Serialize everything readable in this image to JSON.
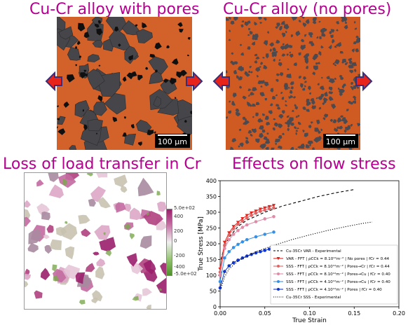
{
  "titles": {
    "pores": "Cu-Cr alloy with pores",
    "no_pores": "Cu-Cr alloy (no pores)",
    "load_transfer": "Loss of load transfer in Cr",
    "flow_stress": "Effects on flow stress"
  },
  "micrographs": {
    "scale_label_left": "100 µm",
    "scale_label_right": "100 µm",
    "colors": {
      "matrix": "#d2622a",
      "cr_phase": "#46464a",
      "pores": "#101010",
      "arrow_fill": "#e8231a",
      "arrow_border": "#3a2e7a"
    }
  },
  "stress_map": {
    "colorbar_ticks": [
      "5.0e+02",
      "400",
      "200",
      "0",
      "-200",
      "-400",
      "-5.0e+02"
    ],
    "colors": {
      "high": "#9b1f6b",
      "mid": "#f0f0f0",
      "low": "#4e8f2a"
    }
  },
  "chart_data": {
    "type": "line",
    "xlabel": "True Strain",
    "ylabel": "True Stress [MPa]",
    "xlim": [
      0,
      0.2
    ],
    "ylim": [
      0,
      400
    ],
    "xticks": [
      "0.00",
      "0.05",
      "0.10",
      "0.15",
      "0.20"
    ],
    "yticks": [
      "0",
      "50",
      "100",
      "150",
      "200",
      "250",
      "300",
      "350",
      "400"
    ],
    "grid": false,
    "legend_position": "lower-right",
    "series": [
      {
        "name": "Cu-35Cr VAR - Experimental",
        "style": "dashed",
        "color": "#000000",
        "x": [
          0.001,
          0.005,
          0.01,
          0.02,
          0.03,
          0.05,
          0.07,
          0.09,
          0.11,
          0.13,
          0.15
        ],
        "y": [
          150,
          195,
          220,
          255,
          275,
          300,
          320,
          335,
          350,
          362,
          372
        ]
      },
      {
        "name": "VAR - FFT | ρCCk = 8.10¹²m⁻² | No pores | fCr = 0.44",
        "style": "marker-line",
        "marker": "triangle-down",
        "color": "#e3231c",
        "x": [
          0,
          0.005,
          0.01,
          0.015,
          0.02,
          0.025,
          0.03,
          0.035,
          0.04,
          0.045,
          0.05,
          0.055,
          0.06
        ],
        "y": [
          120,
          205,
          235,
          255,
          268,
          280,
          290,
          298,
          304,
          310,
          314,
          318,
          322
        ]
      },
      {
        "name": "SSS - FFT | ρCCk = 8.10¹²m⁻² | Pores→Cr | fCr = 0.44",
        "style": "marker-line",
        "marker": "circle",
        "color": "#e06262",
        "x": [
          0,
          0.005,
          0.01,
          0.015,
          0.02,
          0.025,
          0.03,
          0.035,
          0.04,
          0.045,
          0.05,
          0.055,
          0.06
        ],
        "y": [
          110,
          195,
          228,
          248,
          262,
          272,
          282,
          290,
          297,
          303,
          307,
          311,
          314
        ]
      },
      {
        "name": "SSS - FFT | ρCCk = 8.10¹²m⁻² | Pores→Cu | fCr = 0.40",
        "style": "marker-line",
        "marker": "circle",
        "color": "#e08aa6",
        "x": [
          0,
          0.005,
          0.01,
          0.015,
          0.02,
          0.025,
          0.03,
          0.04,
          0.05,
          0.06
        ],
        "y": [
          100,
          185,
          213,
          230,
          242,
          252,
          260,
          270,
          279,
          286
        ]
      },
      {
        "name": "SSS - FFT | ρCCk = 4.10¹²m⁻² | Pores→Cu | fCr = 0.40",
        "style": "marker-line",
        "marker": "circle",
        "color": "#3590e8",
        "x": [
          0,
          0.005,
          0.01,
          0.015,
          0.02,
          0.025,
          0.03,
          0.04,
          0.05,
          0.06
        ],
        "y": [
          80,
          155,
          175,
          188,
          198,
          206,
          213,
          222,
          230,
          237
        ]
      },
      {
        "name": "SSS - FFT | ρCCk = 4.10¹²m⁻² | Pores | fCr = 0.40",
        "style": "marker-line",
        "marker": "circle",
        "color": "#1035c8",
        "x": [
          0,
          0.005,
          0.01,
          0.015,
          0.02,
          0.025,
          0.03,
          0.035,
          0.04,
          0.045,
          0.05,
          0.055,
          0.06
        ],
        "y": [
          60,
          112,
          130,
          140,
          148,
          155,
          161,
          166,
          171,
          175,
          179,
          183,
          186
        ]
      },
      {
        "name": "Cu-35Cr SSS - Experimental",
        "style": "dotted",
        "color": "#000000",
        "x": [
          0.001,
          0.005,
          0.01,
          0.02,
          0.04,
          0.06,
          0.08,
          0.1,
          0.12,
          0.14,
          0.16,
          0.17
        ],
        "y": [
          60,
          95,
          120,
          145,
          175,
          195,
          213,
          228,
          242,
          254,
          265,
          269
        ]
      }
    ]
  }
}
